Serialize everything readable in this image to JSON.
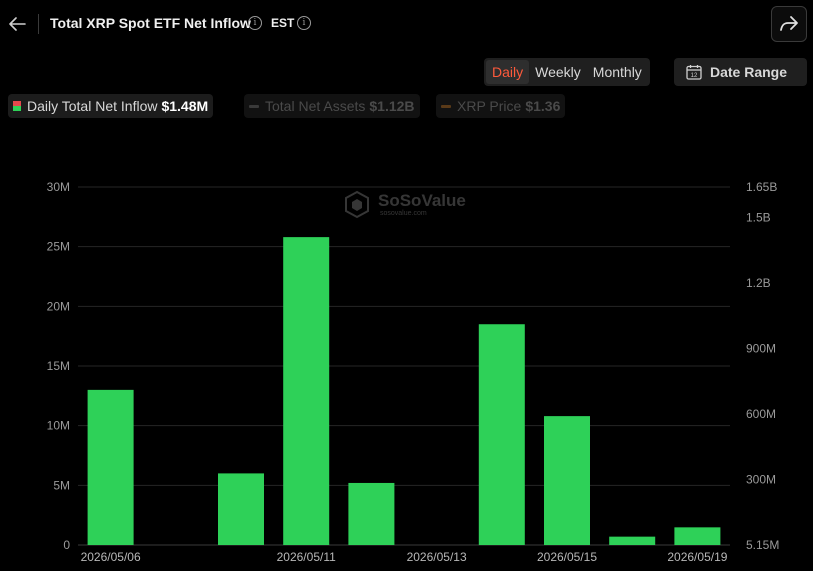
{
  "header": {
    "title": "Total XRP Spot ETF Net Inflow",
    "timezone": "EST"
  },
  "controls": {
    "periods": [
      "Daily",
      "Weekly",
      "Monthly"
    ],
    "active_period": "Daily",
    "date_range_label": "Date Range",
    "calendar_icon_text": "12"
  },
  "legend": [
    {
      "label": "Daily Total Net Inflow",
      "value": "$1.48M",
      "active": true
    },
    {
      "label": "Total Net Assets",
      "value": "$1.12B",
      "active": false
    },
    {
      "label": "XRP Price",
      "value": "$1.36",
      "active": false
    }
  ],
  "watermark": {
    "brand": "SoSoValue",
    "url": "sosovalue.com"
  },
  "colors": {
    "bar": "#2ed158",
    "accent": "#ff5a3c",
    "net_assets_line": "#3a3a3a",
    "price_line": "#5a3a18"
  },
  "chart_data": {
    "type": "bar",
    "x": [
      "2026/05/06",
      "2026/05/07",
      "2026/05/08",
      "2026/05/11",
      "2026/05/12",
      "2026/05/13",
      "2026/05/14",
      "2026/05/15",
      "2026/05/18",
      "2026/05/19"
    ],
    "x_tick_labels": [
      "2026/05/06",
      "2026/05/11",
      "2026/05/13",
      "2026/05/15",
      "2026/05/19"
    ],
    "series": [
      {
        "name": "Daily Total Net Inflow",
        "values": [
          13.0,
          0,
          6.0,
          25.8,
          5.2,
          0,
          18.5,
          10.8,
          0.7,
          1.48
        ]
      }
    ],
    "y_unit": "M",
    "ylim": [
      0,
      30
    ],
    "y_ticks": [
      "0",
      "5M",
      "10M",
      "15M",
      "20M",
      "25M",
      "30M"
    ],
    "y2_ticks": [
      "5.15M",
      "300M",
      "600M",
      "900M",
      "1.2B",
      "1.5B",
      "1.65B"
    ],
    "grid": true
  }
}
